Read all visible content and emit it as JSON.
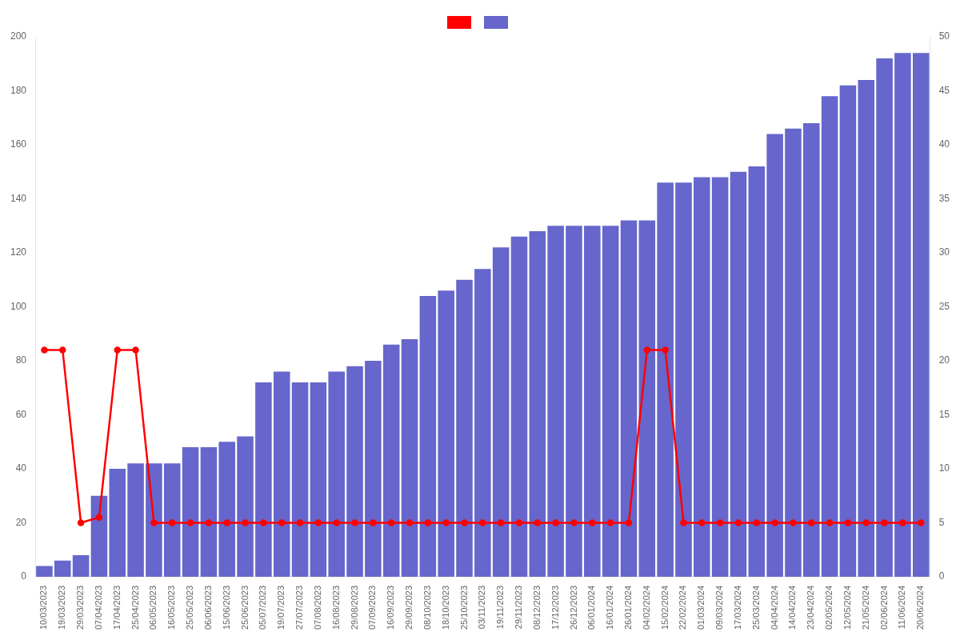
{
  "chart_data": {
    "type": "bar",
    "categories": [
      "10/03/2023",
      "19/03/2023",
      "29/03/2023",
      "07/04/2023",
      "17/04/2023",
      "25/04/2023",
      "06/05/2023",
      "16/05/2023",
      "25/05/2023",
      "06/06/2023",
      "15/06/2023",
      "25/06/2023",
      "05/07/2023",
      "19/07/2023",
      "27/07/2023",
      "07/08/2023",
      "16/08/2023",
      "29/08/2023",
      "07/09/2023",
      "16/09/2023",
      "29/09/2023",
      "08/10/2023",
      "18/10/2023",
      "25/10/2023",
      "03/11/2023",
      "19/11/2023",
      "29/11/2023",
      "08/12/2023",
      "17/12/2023",
      "26/12/2023",
      "06/01/2024",
      "16/01/2024",
      "26/01/2024",
      "04/02/2024",
      "15/02/2024",
      "22/02/2024",
      "01/03/2024",
      "09/03/2024",
      "17/03/2024",
      "25/03/2024",
      "04/04/2024",
      "14/04/2024",
      "23/04/2024",
      "02/05/2024",
      "12/05/2024",
      "21/05/2024",
      "02/06/2024",
      "11/06/2024",
      "20/06/2024"
    ],
    "series": [
      {
        "type": "line",
        "axis": "y2",
        "color": "#ff0000",
        "marker": "circle",
        "line_style": "solid",
        "values": [
          21,
          21,
          5,
          5.5,
          21,
          21,
          5,
          5,
          5,
          5,
          5,
          5,
          5,
          5,
          5,
          5,
          5,
          5,
          5,
          5,
          5,
          5,
          5,
          5,
          5,
          5,
          5,
          5,
          5,
          5,
          5,
          5,
          5,
          21,
          21,
          5,
          5,
          5,
          5,
          5,
          5,
          5,
          5,
          5,
          5,
          5,
          5,
          5,
          5
        ]
      },
      {
        "type": "bar",
        "color": "#6666cc",
        "values": [
          4,
          6,
          8,
          30,
          40,
          42,
          42,
          42,
          48,
          48,
          50,
          52,
          72,
          76,
          72,
          72,
          76,
          78,
          80,
          86,
          88,
          104,
          106,
          110,
          114,
          122,
          126,
          128,
          130,
          130,
          130,
          130,
          132,
          132,
          146,
          146,
          148,
          148,
          150,
          152,
          164,
          166,
          168,
          178,
          182,
          184,
          192,
          194,
          194
        ]
      }
    ],
    "ylim": [
      0,
      200
    ],
    "yticks": [
      0,
      20,
      40,
      60,
      80,
      100,
      120,
      140,
      160,
      180,
      200
    ],
    "y2lim": [
      0,
      50
    ],
    "y2ticks": [
      0,
      5,
      10,
      15,
      20,
      25,
      30,
      35,
      40,
      45,
      50
    ],
    "grid": false,
    "legend": "top"
  }
}
